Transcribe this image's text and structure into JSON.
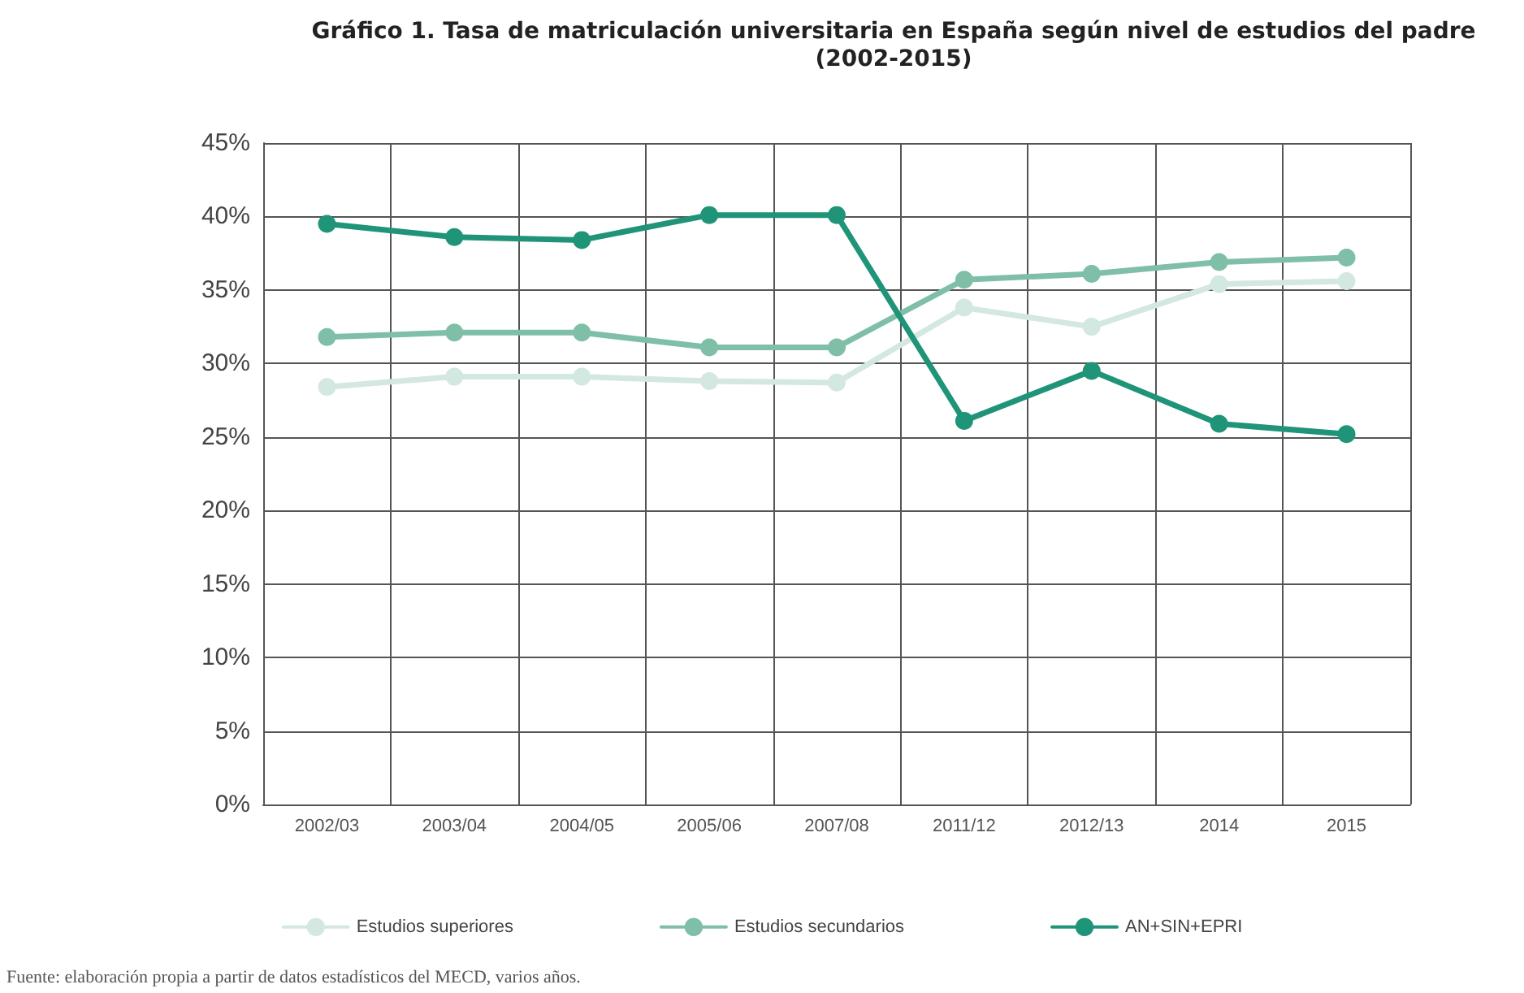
{
  "chart_data": {
    "type": "line",
    "title": "Gráfico 1. Tasa de matriculación universitaria en España según nivel de estudios del padre\n(2002-2015)",
    "categories": [
      "2002/03",
      "2003/04",
      "2004/05",
      "2005/06",
      "2007/08",
      "2011/12",
      "2012/13",
      "2014",
      "2015"
    ],
    "series": [
      {
        "name": "Estudios superiores",
        "color": "#d3e8e1",
        "values": [
          28.4,
          29.1,
          29.1,
          28.8,
          28.7,
          33.8,
          32.5,
          35.4,
          35.6
        ]
      },
      {
        "name": "Estudios secundarios",
        "color": "#7fbfa8",
        "values": [
          31.8,
          32.1,
          32.1,
          31.1,
          31.1,
          35.7,
          36.1,
          36.9,
          37.2
        ]
      },
      {
        "name": "AN+SIN+EPRI",
        "color": "#1f9478",
        "values": [
          39.5,
          38.6,
          38.4,
          40.1,
          40.1,
          26.1,
          29.5,
          25.9,
          25.2
        ]
      }
    ],
    "ylim": [
      0,
      45
    ],
    "yticks": [
      {
        "value": 0,
        "label": "0%"
      },
      {
        "value": 5,
        "label": "5%"
      },
      {
        "value": 10,
        "label": "10%"
      },
      {
        "value": 15,
        "label": "15%"
      },
      {
        "value": 20,
        "label": "20%"
      },
      {
        "value": 25,
        "label": "25%"
      },
      {
        "value": 30,
        "label": "30%"
      },
      {
        "value": 35,
        "label": "35%"
      },
      {
        "value": 40,
        "label": "40%"
      },
      {
        "value": 45,
        "label": "45%"
      }
    ],
    "grid": true,
    "legend": "bottom",
    "marker": "circle",
    "line_style": "solid",
    "annotations": [
      "Fuente: elaboración propia a partir de datos estadísticos del MECD, varios años."
    ]
  }
}
